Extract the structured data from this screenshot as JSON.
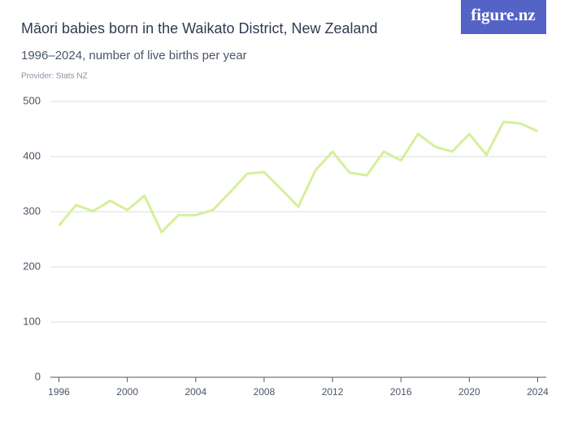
{
  "logo": "figure.nz",
  "chart_data": {
    "type": "line",
    "title": "Māori babies born in the Waikato District, New Zealand",
    "subtitle": "1996–2024, number of live births per year",
    "provider": "Provider: Stats NZ",
    "x": [
      1996,
      1997,
      1998,
      1999,
      2000,
      2001,
      2002,
      2003,
      2004,
      2005,
      2006,
      2007,
      2008,
      2009,
      2010,
      2011,
      2012,
      2013,
      2014,
      2015,
      2016,
      2017,
      2018,
      2019,
      2020,
      2021,
      2022,
      2023,
      2024
    ],
    "series": [
      {
        "color": "#d4f09a",
        "values": [
          275,
          312,
          301,
          320,
          303,
          329,
          263,
          294,
          294,
          303,
          335,
          369,
          372,
          341,
          309,
          375,
          409,
          371,
          366,
          409,
          393,
          441,
          418,
          409,
          441,
          403,
          463,
          460,
          446
        ]
      }
    ],
    "xlim": [
      1995.5,
      2024.5
    ],
    "xticks": [
      1996,
      2000,
      2004,
      2008,
      2012,
      2016,
      2020,
      2024
    ],
    "ylim": [
      0,
      500
    ],
    "yticks": [
      0,
      100,
      200,
      300,
      400,
      500
    ],
    "grid": true
  }
}
